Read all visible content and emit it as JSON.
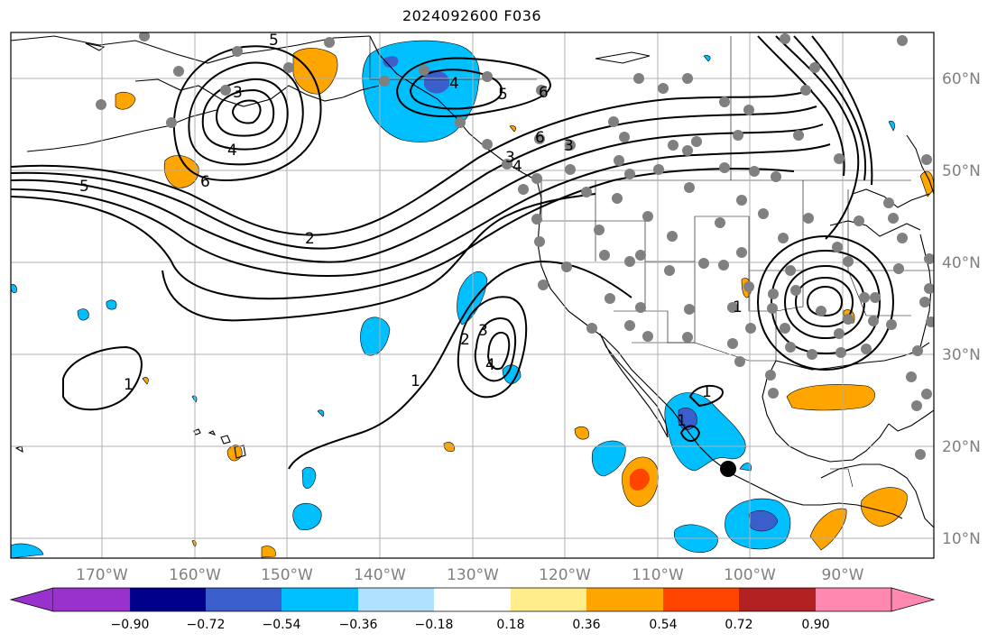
{
  "title": "2024092600 F036",
  "longitude_labels": [
    "170°W",
    "160°W",
    "150°W",
    "140°W",
    "130°W",
    "120°W",
    "110°W",
    "100°W",
    "90°W"
  ],
  "latitude_labels": [
    "60°N",
    "50°N",
    "40°N",
    "30°N",
    "20°N",
    "10°N"
  ],
  "colorbar": {
    "tick_labels": [
      "−0.90",
      "−0.72",
      "−0.54",
      "−0.36",
      "−0.18",
      "0.18",
      "0.36",
      "0.54",
      "0.72",
      "0.90"
    ],
    "colors": [
      "#9932cc",
      "#00008b",
      "#3a5fcd",
      "#00bfff",
      "#b0e2ff",
      "#ffffff",
      "#ffec8b",
      "#ffa500",
      "#ff4500",
      "#b22222",
      "#ff88b0"
    ]
  },
  "contour_labels": [
    "5",
    "3",
    "4",
    "6",
    "5",
    "4",
    "5",
    "6",
    "6",
    "3",
    "2",
    "1",
    "1",
    "2",
    "3",
    "4",
    "1",
    "1",
    "3",
    "4",
    "1"
  ],
  "stations": {
    "color": "#808080"
  },
  "storm_marker": {
    "color": "#000000"
  },
  "colors": {
    "land_outline": "#000000",
    "grid": "#b0b0b0"
  }
}
